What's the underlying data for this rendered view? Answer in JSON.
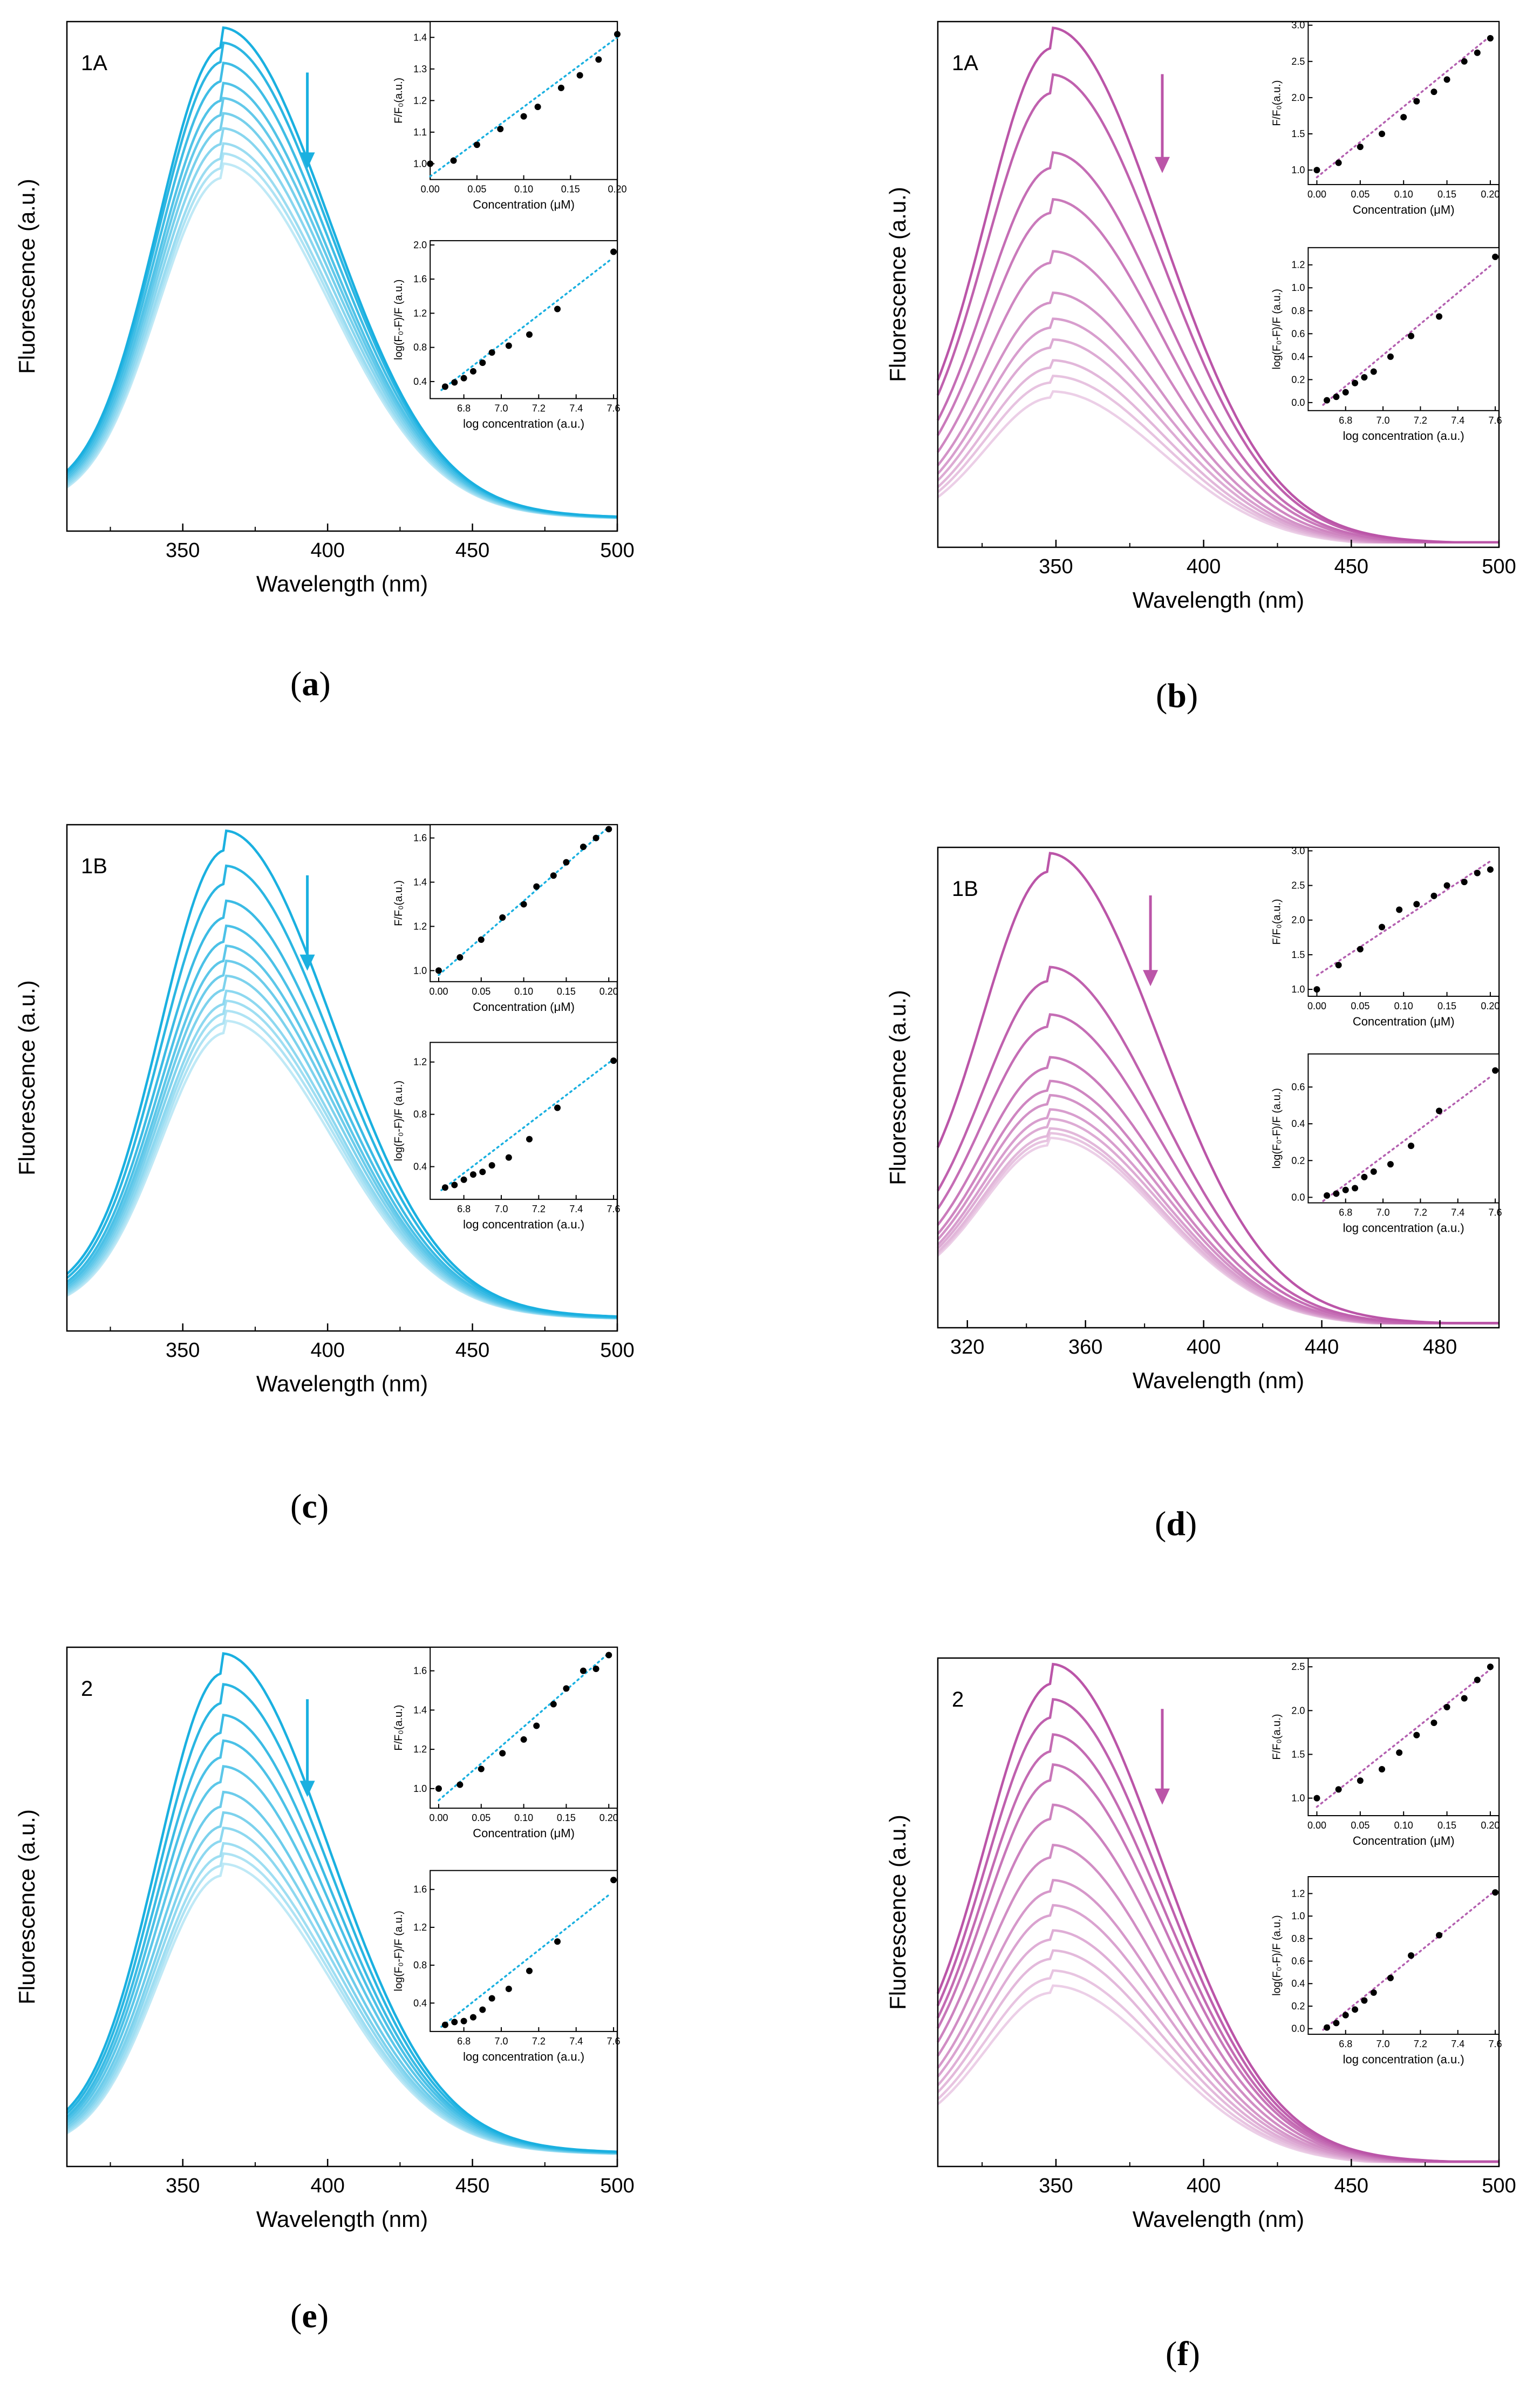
{
  "figure": {
    "common": {
      "xlabel": "Wavelength (nm)",
      "ylabel": "Fluorescence (a.u.)",
      "inset_top": {
        "xlabel": "Concentration (μM)",
        "ylabel": "F/F₀(a.u.)"
      },
      "inset_bottom": {
        "xlabel": "log concentration (a.u.)",
        "ylabel": "log(F₀-F)/F (a.u.)"
      }
    },
    "colors": {
      "blue": "#1ab0e0",
      "pink": "#bb55a8",
      "dotted_blue": "#1ab0e0",
      "dotted_pink": "#b460b0",
      "marker": "#000000"
    }
  },
  "chart_data": [
    {
      "id": "a",
      "panel_label": "1A",
      "caption": "a",
      "type": "line",
      "color": "blue",
      "title": "",
      "xlabel": "Wavelength (nm)",
      "ylabel": "Fluorescence (a.u.)",
      "xlim": [
        310,
        500
      ],
      "xticks": [
        350,
        400,
        450,
        500
      ],
      "spectra": {
        "peak_nm": 364,
        "n_curves": 10,
        "peaks": [
          1.0,
          0.97,
          0.93,
          0.89,
          0.86,
          0.83,
          0.8,
          0.77,
          0.75,
          0.73
        ],
        "start": 0.07,
        "end": 0.02
      },
      "inset_top": {
        "type": "scatter",
        "xlim": [
          0,
          0.2
        ],
        "ylim": [
          0.95,
          1.45
        ],
        "xticks": [
          "0.00",
          "0.05",
          "0.10",
          "0.15",
          "0.20"
        ],
        "yticks": [
          "1.0",
          "1.1",
          "1.2",
          "1.3",
          "1.4"
        ],
        "x": [
          0,
          0.025,
          0.05,
          0.075,
          0.1,
          0.115,
          0.14,
          0.16,
          0.18,
          0.2
        ],
        "y": [
          1.0,
          1.01,
          1.06,
          1.11,
          1.15,
          1.18,
          1.24,
          1.28,
          1.33,
          1.41
        ],
        "fit": {
          "x0": 0,
          "y0": 0.96,
          "x1": 0.2,
          "y1": 1.4
        }
      },
      "inset_bottom": {
        "type": "scatter",
        "xlim": [
          6.62,
          7.62
        ],
        "ylim": [
          0.2,
          2.05
        ],
        "xticks": [
          "6.8",
          "7.0",
          "7.2",
          "7.4",
          "7.6"
        ],
        "yticks": [
          "0.4",
          "0.8",
          "1.2",
          "1.6",
          "2.0"
        ],
        "x": [
          6.7,
          6.75,
          6.8,
          6.85,
          6.9,
          6.95,
          7.04,
          7.15,
          7.3,
          7.6
        ],
        "y": [
          0.34,
          0.39,
          0.44,
          0.52,
          0.62,
          0.74,
          0.82,
          0.95,
          1.25,
          1.92
        ],
        "fit": {
          "x0": 6.68,
          "y0": 0.3,
          "x1": 7.58,
          "y1": 1.82
        }
      }
    },
    {
      "id": "b",
      "panel_label": "1A",
      "caption": "b",
      "type": "line",
      "color": "pink",
      "title": "",
      "xlabel": "Wavelength (nm)",
      "ylabel": "Fluorescence (a.u.)",
      "xlim": [
        310,
        500
      ],
      "xticks": [
        350,
        400,
        450,
        500
      ],
      "spectra": {
        "peak_nm": 349,
        "n_curves": 11,
        "peaks": [
          1.0,
          0.91,
          0.76,
          0.67,
          0.57,
          0.49,
          0.44,
          0.4,
          0.36,
          0.33,
          0.3
        ],
        "start": 0.14,
        "end": 0.0
      },
      "inset_top": {
        "type": "scatter",
        "xlim": [
          -0.01,
          0.21
        ],
        "ylim": [
          0.8,
          3.05
        ],
        "xticks": [
          "0.00",
          "0.05",
          "0.10",
          "0.15",
          "0.20"
        ],
        "yticks": [
          "1.0",
          "1.5",
          "2.0",
          "2.5",
          "3.0"
        ],
        "x": [
          0,
          0.025,
          0.05,
          0.075,
          0.1,
          0.115,
          0.135,
          0.15,
          0.17,
          0.185,
          0.2
        ],
        "y": [
          1.0,
          1.1,
          1.32,
          1.5,
          1.73,
          1.95,
          2.08,
          2.25,
          2.5,
          2.62,
          2.82
        ],
        "fit": {
          "x0": 0,
          "y0": 0.9,
          "x1": 0.2,
          "y1": 2.85
        }
      },
      "inset_bottom": {
        "type": "scatter",
        "xlim": [
          6.6,
          7.62
        ],
        "ylim": [
          -0.07,
          1.35
        ],
        "xticks": [
          "6.8",
          "7.0",
          "7.2",
          "7.4",
          "7.6"
        ],
        "yticks": [
          "0.0",
          "0.2",
          "0.4",
          "0.6",
          "0.8",
          "1.0",
          "1.2"
        ],
        "x": [
          6.7,
          6.75,
          6.8,
          6.85,
          6.9,
          6.95,
          7.04,
          7.15,
          7.3,
          7.6
        ],
        "y": [
          0.02,
          0.05,
          0.09,
          0.17,
          0.22,
          0.27,
          0.4,
          0.58,
          0.75,
          1.27
        ],
        "fit": {
          "x0": 6.68,
          "y0": -0.02,
          "x1": 7.58,
          "y1": 1.2
        }
      }
    },
    {
      "id": "c",
      "panel_label": "1B",
      "caption": "c",
      "type": "line",
      "color": "blue",
      "title": "",
      "xlabel": "Wavelength (nm)",
      "ylabel": "Fluorescence (a.u.)",
      "xlim": [
        310,
        500
      ],
      "xticks": [
        350,
        400,
        450,
        500
      ],
      "spectra": {
        "peak_nm": 365,
        "n_curves": 11,
        "peaks": [
          1.0,
          0.93,
          0.86,
          0.81,
          0.77,
          0.74,
          0.71,
          0.68,
          0.66,
          0.64,
          0.62
        ],
        "start": 0.07,
        "end": 0.02
      },
      "inset_top": {
        "type": "scatter",
        "xlim": [
          -0.01,
          0.21
        ],
        "ylim": [
          0.95,
          1.66
        ],
        "xticks": [
          "0.00",
          "0.05",
          "0.10",
          "0.15",
          "0.20"
        ],
        "yticks": [
          "1.0",
          "1.2",
          "1.4",
          "1.6"
        ],
        "x": [
          0,
          0.025,
          0.05,
          0.075,
          0.1,
          0.115,
          0.135,
          0.15,
          0.17,
          0.185,
          0.2
        ],
        "y": [
          1.0,
          1.06,
          1.14,
          1.24,
          1.3,
          1.38,
          1.43,
          1.49,
          1.56,
          1.6,
          1.64
        ],
        "fit": {
          "x0": 0,
          "y0": 0.98,
          "x1": 0.2,
          "y1": 1.65
        }
      },
      "inset_bottom": {
        "type": "scatter",
        "xlim": [
          6.62,
          7.62
        ],
        "ylim": [
          0.15,
          1.35
        ],
        "xticks": [
          "6.8",
          "7.0",
          "7.2",
          "7.4",
          "7.6"
        ],
        "yticks": [
          "0.4",
          "0.8",
          "1.2"
        ],
        "x": [
          6.7,
          6.75,
          6.8,
          6.85,
          6.9,
          6.95,
          7.04,
          7.15,
          7.3,
          7.6
        ],
        "y": [
          0.24,
          0.26,
          0.3,
          0.34,
          0.36,
          0.41,
          0.47,
          0.61,
          0.85,
          1.21
        ],
        "fit": {
          "x0": 6.68,
          "y0": 0.22,
          "x1": 7.58,
          "y1": 1.2
        }
      }
    },
    {
      "id": "d",
      "panel_label": "1B",
      "caption": "d",
      "type": "line",
      "color": "pink",
      "title": "",
      "xlabel": "Wavelength (nm)",
      "ylabel": "Fluorescence (a.u.)",
      "xlim": [
        310,
        500
      ],
      "xticks": [
        320,
        360,
        400,
        440,
        480
      ],
      "spectra": {
        "peak_nm": 348,
        "n_curves": 11,
        "peaks": [
          1.0,
          0.76,
          0.66,
          0.57,
          0.52,
          0.49,
          0.46,
          0.44,
          0.42,
          0.41,
          0.4
        ],
        "start": 0.2,
        "end": 0.0
      },
      "inset_top": {
        "type": "scatter",
        "xlim": [
          -0.01,
          0.21
        ],
        "ylim": [
          0.9,
          3.05
        ],
        "xticks": [
          "0.00",
          "0.05",
          "0.10",
          "0.15",
          "0.20"
        ],
        "yticks": [
          "1.0",
          "1.5",
          "2.0",
          "2.5",
          "3.0"
        ],
        "x": [
          0,
          0.025,
          0.05,
          0.075,
          0.095,
          0.115,
          0.135,
          0.15,
          0.17,
          0.185,
          0.2
        ],
        "y": [
          1.0,
          1.35,
          1.58,
          1.9,
          2.15,
          2.23,
          2.35,
          2.5,
          2.55,
          2.68,
          2.73
        ],
        "fit": {
          "x0": 0,
          "y0": 1.2,
          "x1": 0.2,
          "y1": 2.85
        }
      },
      "inset_bottom": {
        "type": "scatter",
        "xlim": [
          6.6,
          7.62
        ],
        "ylim": [
          -0.03,
          0.78
        ],
        "xticks": [
          "6.8",
          "7.0",
          "7.2",
          "7.4",
          "7.6"
        ],
        "yticks": [
          "0.0",
          "0.2",
          "0.4",
          "0.6"
        ],
        "x": [
          6.7,
          6.75,
          6.8,
          6.85,
          6.9,
          6.95,
          7.04,
          7.15,
          7.3,
          7.6
        ],
        "y": [
          0.01,
          0.02,
          0.04,
          0.05,
          0.11,
          0.14,
          0.18,
          0.28,
          0.47,
          0.69
        ],
        "fit": {
          "x0": 6.68,
          "y0": -0.02,
          "x1": 7.58,
          "y1": 0.66
        }
      }
    },
    {
      "id": "e",
      "panel_label": "2",
      "caption": "e",
      "type": "line",
      "color": "blue",
      "title": "",
      "xlabel": "Wavelength (nm)",
      "ylabel": "Fluorescence (a.u.)",
      "xlim": [
        310,
        500
      ],
      "xticks": [
        350,
        400,
        450,
        500
      ],
      "spectra": {
        "peak_nm": 364,
        "n_curves": 11,
        "peaks": [
          1.0,
          0.94,
          0.88,
          0.83,
          0.78,
          0.73,
          0.69,
          0.66,
          0.63,
          0.61,
          0.59
        ],
        "start": 0.06,
        "end": 0.02
      },
      "inset_top": {
        "type": "scatter",
        "xlim": [
          -0.01,
          0.21
        ],
        "ylim": [
          0.9,
          1.72
        ],
        "xticks": [
          "0.00",
          "0.05",
          "0.10",
          "0.15",
          "0.20"
        ],
        "yticks": [
          "1.0",
          "1.2",
          "1.4",
          "1.6"
        ],
        "x": [
          0,
          0.025,
          0.05,
          0.075,
          0.1,
          0.115,
          0.135,
          0.15,
          0.17,
          0.185,
          0.2
        ],
        "y": [
          1.0,
          1.02,
          1.1,
          1.18,
          1.25,
          1.32,
          1.43,
          1.51,
          1.6,
          1.61,
          1.68
        ],
        "fit": {
          "x0": 0,
          "y0": 0.94,
          "x1": 0.2,
          "y1": 1.69
        }
      },
      "inset_bottom": {
        "type": "scatter",
        "xlim": [
          6.62,
          7.62
        ],
        "ylim": [
          0.1,
          1.8
        ],
        "xticks": [
          "6.8",
          "7.0",
          "7.2",
          "7.4",
          "7.6"
        ],
        "yticks": [
          "0.4",
          "0.8",
          "1.2",
          "1.6"
        ],
        "x": [
          6.7,
          6.75,
          6.8,
          6.85,
          6.9,
          6.95,
          7.04,
          7.15,
          7.3,
          7.6
        ],
        "y": [
          0.17,
          0.2,
          0.21,
          0.25,
          0.33,
          0.45,
          0.55,
          0.74,
          1.05,
          1.7
        ],
        "fit": {
          "x0": 6.68,
          "y0": 0.15,
          "x1": 7.58,
          "y1": 1.55
        }
      }
    },
    {
      "id": "f",
      "panel_label": "2",
      "caption": "f",
      "type": "line",
      "color": "pink",
      "title": "",
      "xlabel": "Wavelength (nm)",
      "ylabel": "Fluorescence (a.u.)",
      "xlim": [
        310,
        500
      ],
      "xticks": [
        350,
        400,
        450,
        500
      ],
      "spectra": {
        "peak_nm": 349,
        "n_curves": 12,
        "peaks": [
          1.0,
          0.93,
          0.86,
          0.8,
          0.72,
          0.64,
          0.57,
          0.52,
          0.47,
          0.43,
          0.39,
          0.36
        ],
        "start": 0.17,
        "end": 0.0
      },
      "inset_top": {
        "type": "scatter",
        "xlim": [
          -0.01,
          0.21
        ],
        "ylim": [
          0.8,
          2.6
        ],
        "xticks": [
          "0.00",
          "0.05",
          "0.10",
          "0.15",
          "0.20"
        ],
        "yticks": [
          "1.0",
          "1.5",
          "2.0",
          "2.5"
        ],
        "x": [
          0,
          0.025,
          0.05,
          0.075,
          0.095,
          0.115,
          0.135,
          0.15,
          0.17,
          0.185,
          0.2
        ],
        "y": [
          1.0,
          1.1,
          1.2,
          1.33,
          1.52,
          1.72,
          1.86,
          2.04,
          2.14,
          2.35,
          2.5
        ],
        "fit": {
          "x0": 0,
          "y0": 0.9,
          "x1": 0.2,
          "y1": 2.47
        }
      },
      "inset_bottom": {
        "type": "scatter",
        "xlim": [
          6.6,
          7.62
        ],
        "ylim": [
          -0.05,
          1.35
        ],
        "xticks": [
          "6.8",
          "7.0",
          "7.2",
          "7.4",
          "7.6"
        ],
        "yticks": [
          "0.0",
          "0.2",
          "0.4",
          "0.6",
          "0.8",
          "1.0",
          "1.2"
        ],
        "x": [
          6.7,
          6.75,
          6.8,
          6.85,
          6.9,
          6.95,
          7.04,
          7.15,
          7.3,
          7.6
        ],
        "y": [
          0.01,
          0.05,
          0.12,
          0.17,
          0.25,
          0.32,
          0.45,
          0.65,
          0.83,
          1.21
        ],
        "fit": {
          "x0": 6.68,
          "y0": -0.01,
          "x1": 7.58,
          "y1": 1.2
        }
      }
    }
  ]
}
